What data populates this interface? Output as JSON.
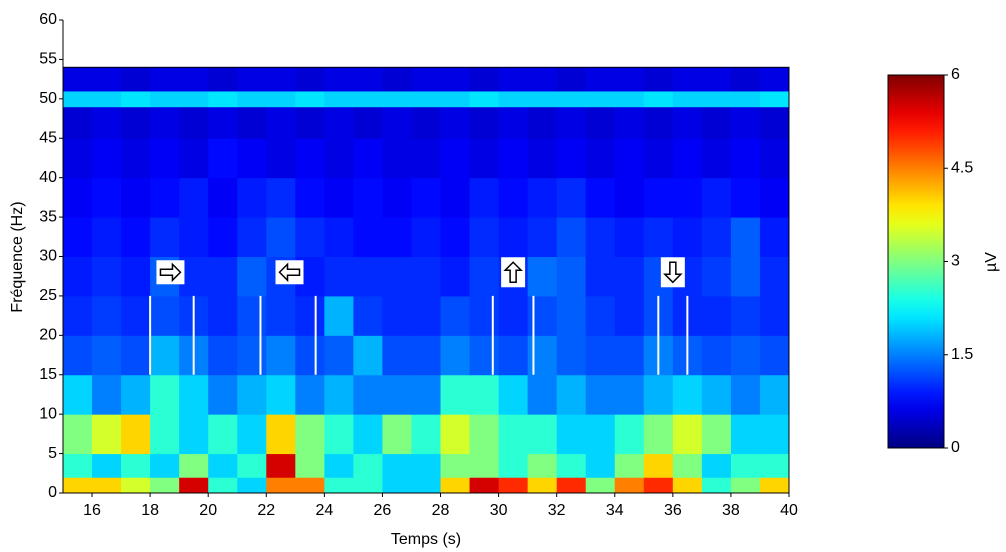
{
  "chart_data": {
    "type": "heatmap",
    "x_label": "Temps (s)",
    "y_label": "Fréquence (Hz)",
    "colorbar_label": "µV",
    "xlim": [
      15,
      40
    ],
    "xticks": [
      16,
      18,
      20,
      22,
      24,
      26,
      28,
      30,
      32,
      34,
      36,
      38,
      40
    ],
    "ylim": [
      0,
      60
    ],
    "yticks": [
      0,
      5,
      10,
      15,
      20,
      25,
      30,
      35,
      40,
      45,
      50,
      55,
      60
    ],
    "clim": [
      0,
      6
    ],
    "cticks": [
      0,
      1.5,
      3,
      4.5,
      6
    ],
    "colormap": "jet",
    "x_bins": [
      15,
      16,
      17,
      18,
      19,
      20,
      21,
      22,
      23,
      24,
      25,
      26,
      27,
      28,
      29,
      30,
      31,
      32,
      33,
      34,
      35,
      36,
      37,
      38,
      39,
      40
    ],
    "y_bins": [
      0,
      2,
      5,
      10,
      15,
      20,
      25,
      30,
      35,
      40,
      45,
      49,
      51,
      54
    ],
    "z": [
      [
        4,
        4,
        3.5,
        3,
        5.5,
        2.5,
        2,
        4.5,
        4.5,
        2.5,
        2.5,
        2,
        2,
        4,
        5.5,
        5,
        4,
        5,
        3,
        4.5,
        5,
        4,
        2.5,
        3,
        4
      ],
      [
        2.5,
        2,
        2.5,
        2,
        3,
        2,
        2.5,
        5.5,
        3,
        2,
        2.5,
        2,
        2,
        3,
        3,
        2.5,
        3,
        2.5,
        2,
        3,
        4,
        3,
        2,
        2.5,
        2.5
      ],
      [
        3,
        3.5,
        4,
        2.5,
        2,
        2.5,
        2,
        4,
        3,
        2.5,
        2,
        3,
        2.5,
        3.5,
        3,
        2.5,
        2.5,
        2,
        2,
        2.5,
        3,
        3.5,
        3,
        2,
        2
      ],
      [
        2,
        1.5,
        1.8,
        2.5,
        2,
        1.5,
        1.8,
        2,
        1.5,
        1.8,
        1.5,
        1.5,
        1.5,
        2.5,
        2.5,
        2,
        1.5,
        1.8,
        1.5,
        1.5,
        1.8,
        2,
        1.8,
        1.5,
        1.8
      ],
      [
        1.2,
        1.3,
        1.2,
        1.8,
        1.5,
        1.2,
        1.3,
        1.5,
        1.2,
        1.3,
        1.8,
        1.2,
        1.2,
        1.5,
        1.3,
        1.2,
        1.5,
        1.3,
        1.2,
        1.2,
        1.5,
        1.3,
        1.2,
        1.3,
        1.2
      ],
      [
        1,
        1.1,
        1,
        1.2,
        1.1,
        1,
        1.2,
        1.1,
        1,
        1.8,
        1.1,
        1,
        1,
        1.2,
        1.1,
        1,
        1.2,
        1.3,
        1.1,
        1,
        1.2,
        1,
        1,
        1.1,
        1
      ],
      [
        0.9,
        1,
        0.9,
        1.3,
        1,
        1,
        1.3,
        1.1,
        0.9,
        1,
        1,
        1,
        1,
        0.9,
        1.1,
        1,
        1.4,
        1.3,
        1,
        1,
        1.2,
        1,
        1.1,
        1.3,
        1
      ],
      [
        0.8,
        0.9,
        0.8,
        1,
        0.9,
        0.8,
        1,
        1.2,
        1,
        0.9,
        0.8,
        0.8,
        0.9,
        0.8,
        1,
        0.9,
        1,
        1.2,
        1,
        0.9,
        1,
        0.9,
        1,
        1.3,
        0.9
      ],
      [
        0.7,
        0.8,
        0.7,
        0.8,
        0.9,
        0.7,
        0.9,
        1,
        0.8,
        0.7,
        0.8,
        0.7,
        0.8,
        0.7,
        0.9,
        0.8,
        0.9,
        1,
        0.8,
        0.7,
        0.8,
        0.8,
        0.9,
        0.8,
        0.7
      ],
      [
        0.6,
        0.7,
        0.6,
        0.7,
        0.6,
        0.8,
        0.7,
        0.6,
        0.7,
        0.6,
        0.7,
        0.6,
        0.6,
        0.7,
        0.6,
        0.7,
        0.6,
        0.7,
        0.6,
        0.7,
        0.6,
        0.7,
        0.6,
        0.7,
        0.6
      ],
      [
        0.5,
        0.6,
        0.5,
        0.6,
        0.5,
        0.6,
        0.5,
        0.6,
        0.5,
        0.6,
        0.5,
        0.6,
        0.5,
        0.6,
        0.5,
        0.6,
        0.5,
        0.6,
        0.5,
        0.6,
        0.5,
        0.6,
        0.5,
        0.6,
        0.5
      ],
      [
        2,
        2,
        2.1,
        2,
        2,
        2.1,
        2,
        2,
        2.1,
        2,
        2,
        2,
        2,
        2,
        2.1,
        2,
        2,
        2,
        2,
        2,
        2.1,
        2,
        2,
        2,
        2.1
      ],
      [
        0.6,
        0.6,
        0.5,
        0.6,
        0.6,
        0.5,
        0.6,
        0.6,
        0.5,
        0.6,
        0.6,
        0.5,
        0.6,
        0.6,
        0.5,
        0.6,
        0.6,
        0.5,
        0.6,
        0.6,
        0.5,
        0.6,
        0.6,
        0.5,
        0.6
      ]
    ],
    "marker_span": [
      15,
      25
    ],
    "markers": [
      {
        "direction": "right",
        "x": 18.7,
        "y": 28,
        "lines": [
          18,
          19.5
        ]
      },
      {
        "direction": "left",
        "x": 22.8,
        "y": 28,
        "lines": [
          21.8,
          23.7
        ]
      },
      {
        "direction": "up",
        "x": 30.5,
        "y": 28,
        "lines": [
          29.8,
          31.2
        ]
      },
      {
        "direction": "down",
        "x": 36,
        "y": 28,
        "lines": [
          35.5,
          36.5
        ]
      }
    ]
  }
}
